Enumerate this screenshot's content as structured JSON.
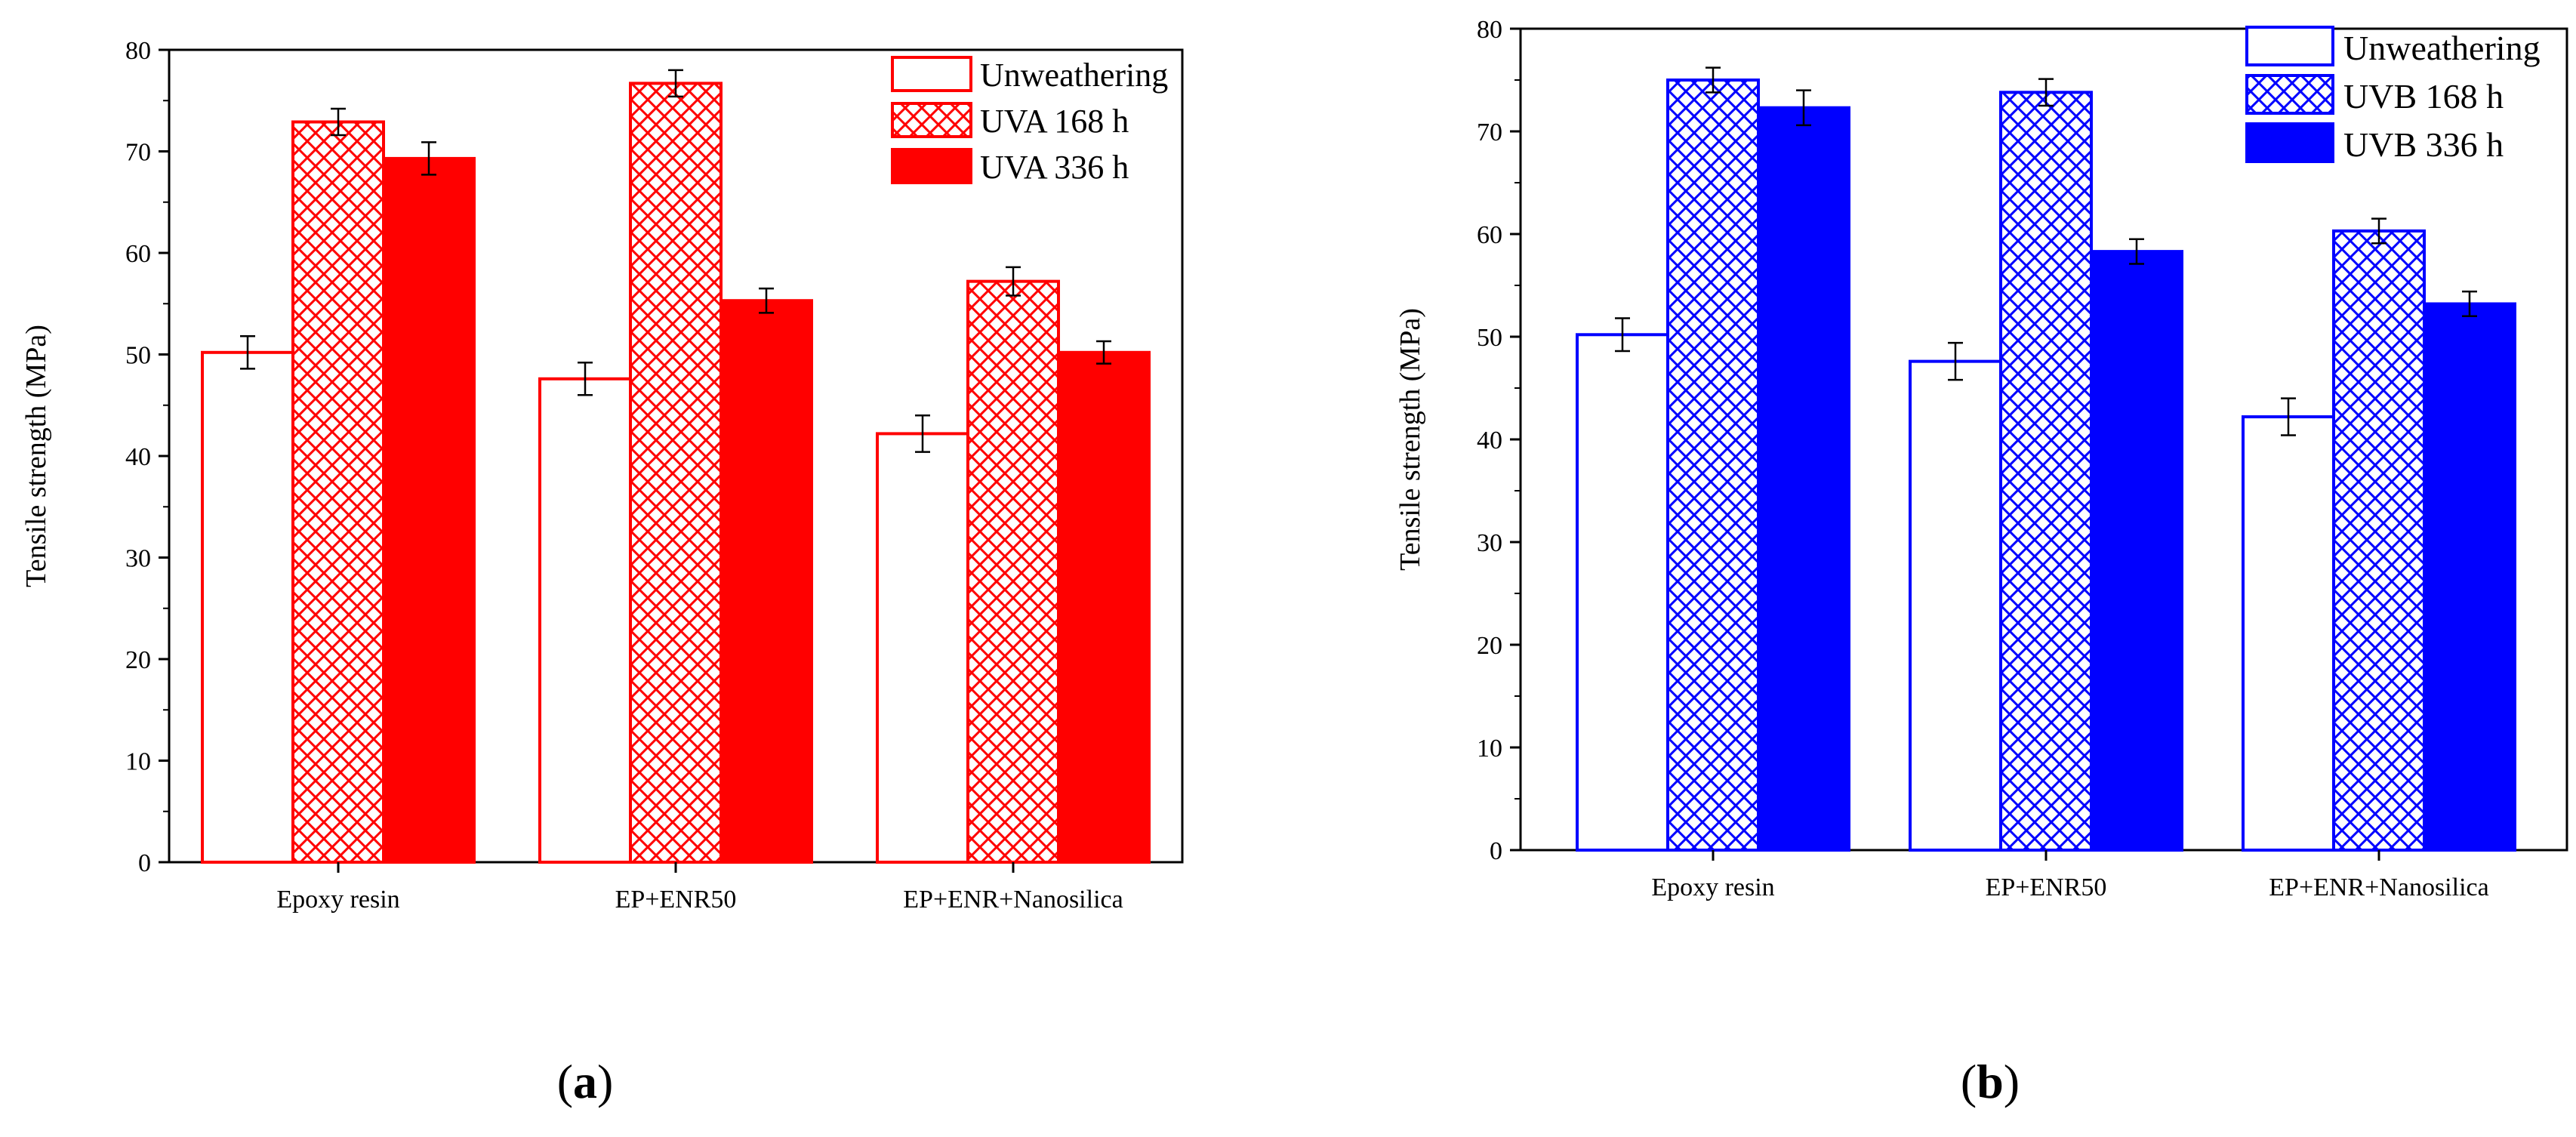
{
  "chart_data": [
    {
      "type": "bar",
      "panel": "a",
      "color": "#ff0000",
      "categories": [
        "Epoxy resin",
        "EP+ENR50",
        "EP+ENR+Nanosilica"
      ],
      "series": [
        {
          "name": "Unweathering",
          "pattern": "open",
          "values": [
            50.2,
            47.6,
            42.2
          ],
          "errors": [
            1.6,
            1.6,
            1.8
          ]
        },
        {
          "name": "UVA 168 h",
          "pattern": "crosshatch",
          "values": [
            72.9,
            76.7,
            57.2
          ],
          "errors": [
            1.3,
            1.3,
            1.4
          ]
        },
        {
          "name": "UVA 336 h",
          "pattern": "solid",
          "values": [
            69.3,
            55.3,
            50.2
          ],
          "errors": [
            1.6,
            1.2,
            1.1
          ]
        }
      ],
      "ylabel": "Tensile strength (MPa)",
      "xlabel": "",
      "ylim": [
        0,
        80
      ],
      "yticks": [
        0,
        10,
        20,
        30,
        40,
        50,
        60,
        70,
        80
      ],
      "legend_position": "top-right",
      "grid": false
    },
    {
      "type": "bar",
      "panel": "b",
      "color": "#0000ff",
      "categories": [
        "Epoxy resin",
        "EP+ENR50",
        "EP+ENR+Nanosilica"
      ],
      "series": [
        {
          "name": "Unweathering",
          "pattern": "open",
          "values": [
            50.2,
            47.6,
            42.2
          ],
          "errors": [
            1.6,
            1.8,
            1.8
          ]
        },
        {
          "name": "UVB 168 h",
          "pattern": "crosshatch",
          "values": [
            75.0,
            73.8,
            60.3
          ],
          "errors": [
            1.2,
            1.3,
            1.2
          ]
        },
        {
          "name": "UVB 336 h",
          "pattern": "solid",
          "values": [
            72.3,
            58.3,
            53.2
          ],
          "errors": [
            1.7,
            1.2,
            1.2
          ]
        }
      ],
      "ylabel": "Tensile strength (MPa)",
      "xlabel": "",
      "ylim": [
        0,
        80
      ],
      "yticks": [
        0,
        10,
        20,
        30,
        40,
        50,
        60,
        70,
        80
      ],
      "legend_position": "top-right",
      "grid": false
    }
  ],
  "panel_labels": {
    "a": {
      "open": "(",
      "letter": "a",
      "close": ")"
    },
    "b": {
      "open": "(",
      "letter": "b",
      "close": ")"
    }
  }
}
